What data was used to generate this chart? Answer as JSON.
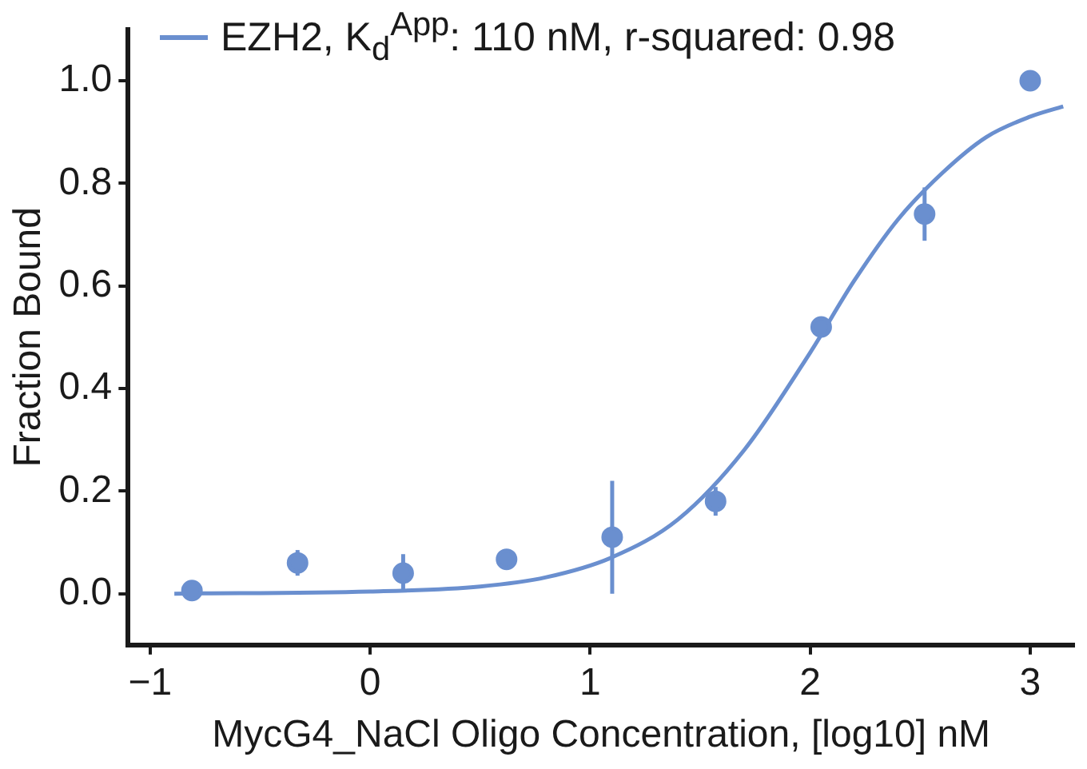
{
  "chart_data": {
    "type": "scatter",
    "xlabel": "MycG4_NaCl Oligo Concentration, [log10] nM",
    "ylabel": "Fraction Bound",
    "xlim": [
      -1.1,
      3.2
    ],
    "xticks": [
      {
        "value": -1,
        "label": "−1"
      },
      0,
      1,
      2,
      3
    ],
    "ylim": [
      -0.1,
      1.1
    ],
    "yticks": [
      {
        "value": 0,
        "label": "0.0"
      },
      0.2,
      0.4,
      0.6,
      0.8,
      {
        "value": 1,
        "label": "1.0"
      }
    ],
    "legend": "top left",
    "marker": "circle",
    "series": [
      {
        "type": "scatter",
        "color": "#6a8fcf",
        "x": [
          -0.81,
          -0.33,
          0.15,
          0.62,
          1.1,
          1.57,
          2.05,
          2.52,
          3.0
        ],
        "values": [
          0.006,
          0.06,
          0.04,
          0.067,
          0.11,
          0.18,
          0.52,
          0.74,
          1.0
        ],
        "errors": [
          null,
          0.025,
          0.037,
          0.01,
          0.11,
          0.028,
          null,
          0.052,
          null
        ]
      },
      {
        "type": "line",
        "name": "EZH2, K$_{d}$$^{App}$: 110 nM, r-squared: 0.98",
        "color": "#6a8fcf",
        "marker": "none",
        "x": [
          -0.89,
          0,
          0.5,
          0.8,
          1.1,
          1.4,
          1.7,
          2.0,
          2.2,
          2.4,
          2.6,
          2.8,
          3.0,
          3.15
        ],
        "values": [
          0.0,
          0.004,
          0.014,
          0.032,
          0.071,
          0.145,
          0.28,
          0.47,
          0.61,
          0.73,
          0.82,
          0.89,
          0.93,
          0.95
        ]
      }
    ]
  }
}
